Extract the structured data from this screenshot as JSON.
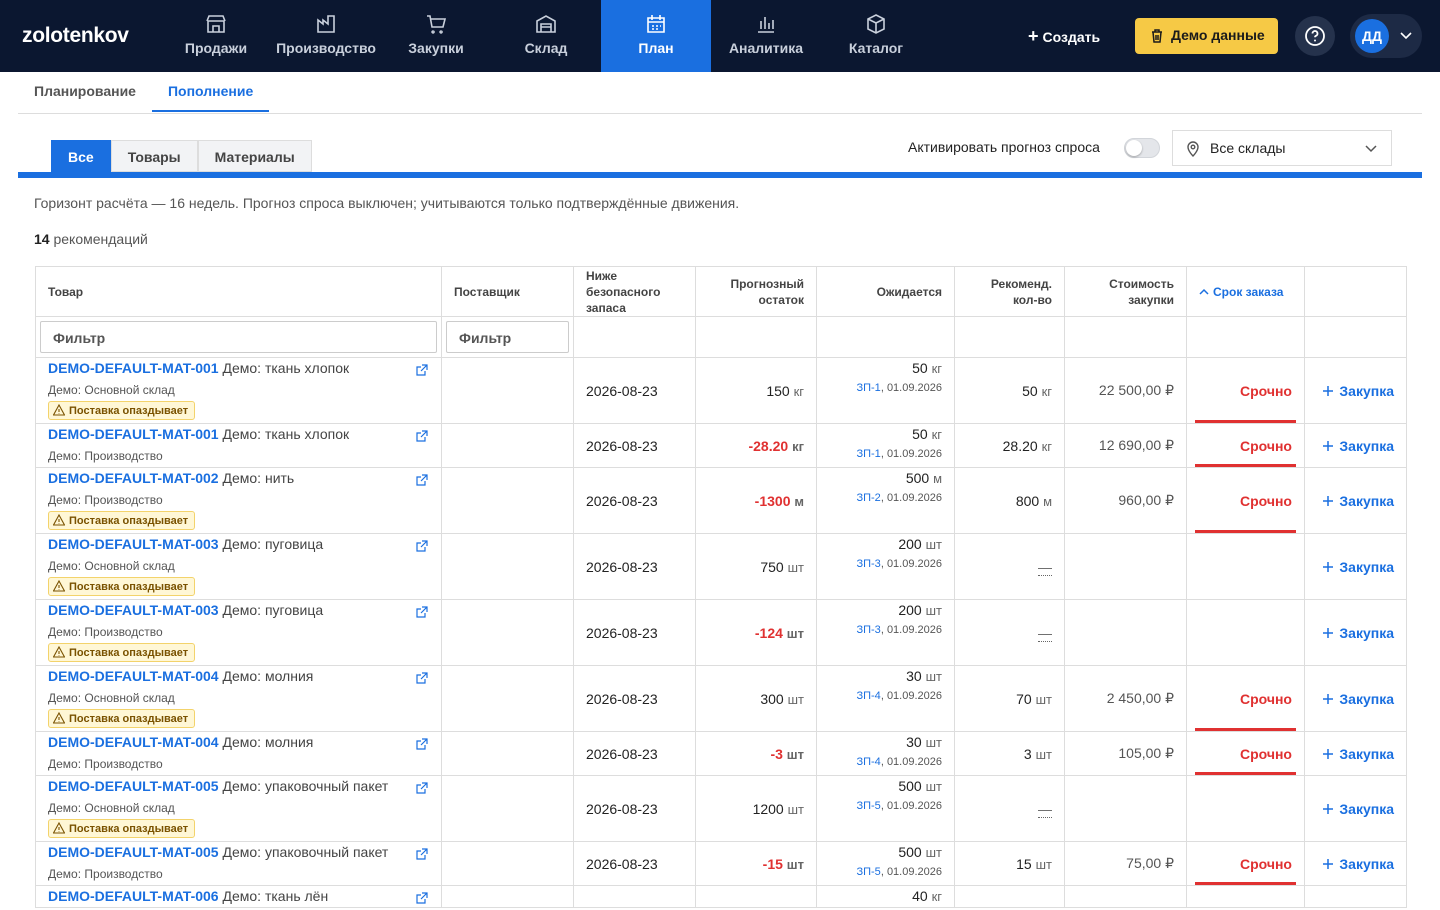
{
  "nav": {
    "logo": "zolotenkov",
    "items": [
      "Продажи",
      "Производство",
      "Закупки",
      "Склад",
      "План",
      "Аналитика",
      "Каталог"
    ],
    "active": 4,
    "create": "Создать",
    "demo": "Демо данные",
    "avatar": "ДД"
  },
  "subtabs": {
    "items": [
      "Планирование",
      "Пополнение"
    ],
    "active": 1
  },
  "filters": {
    "segments": [
      "Все",
      "Товары",
      "Материалы"
    ],
    "active": 0,
    "forecast_toggle": "Активировать прогноз спроса",
    "warehouse": "Все склады"
  },
  "info": "Горизонт расчёта — 16 недель. Прогноз спроса выключен; учитываются только подтверждённые движения.",
  "summary": {
    "count": 14,
    "label": "рекомендаций"
  },
  "table": {
    "headers": [
      "Товар",
      "Поставщик",
      "Ниже безопасного запаса",
      "Прогнозный остаток",
      "Ожидается",
      "Рекоменд. кол-во",
      "Стоимость закупки",
      "Срок заказа"
    ],
    "sort_column": 7,
    "filter_placeholder": "Фильтр",
    "rows": [
      {
        "sku": "DEMO-DEFAULT-MAT-001",
        "name": "Демо: ткань хлопок",
        "location": "Демо: Основной склад",
        "warning": "Поставка опаздывает",
        "date": "2026-08-23",
        "forecast": "150",
        "forecast_unit": "кг",
        "expected": "50",
        "expected_unit": "кг",
        "doc": "ЗП-1",
        "doc_date": "01.09.2026",
        "recommended": "50",
        "recommended_unit": "кг",
        "cost": "22 500,00 ₽",
        "deadline": "Срочно",
        "action": "Закупка"
      },
      {
        "sku": "DEMO-DEFAULT-MAT-001",
        "name": "Демо: ткань хлопок",
        "location": "Демо: Производство",
        "date": "2026-08-23",
        "forecast": "-28.20",
        "forecast_unit": "кг",
        "expected": "50",
        "expected_unit": "кг",
        "doc": "ЗП-1",
        "doc_date": "01.09.2026",
        "recommended": "28.20",
        "recommended_unit": "кг",
        "cost": "12 690,00 ₽",
        "deadline": "Срочно",
        "action": "Закупка"
      },
      {
        "sku": "DEMO-DEFAULT-MAT-002",
        "name": "Демо: нить",
        "location": "Демо: Производство",
        "warning": "Поставка опаздывает",
        "date": "2026-08-23",
        "forecast": "-1300",
        "forecast_unit": "м",
        "expected": "500",
        "expected_unit": "м",
        "doc": "ЗП-2",
        "doc_date": "01.09.2026",
        "recommended": "800",
        "recommended_unit": "м",
        "cost": "960,00 ₽",
        "deadline": "Срочно",
        "action": "Закупка"
      },
      {
        "sku": "DEMO-DEFAULT-MAT-003",
        "name": "Демо: пуговица",
        "location": "Демо: Основной склад",
        "warning": "Поставка опаздывает",
        "date": "2026-08-23",
        "forecast": "750",
        "forecast_unit": "шт",
        "expected": "200",
        "expected_unit": "шт",
        "doc": "ЗП-3",
        "doc_date": "01.09.2026",
        "recommended": "—",
        "action": "Закупка"
      },
      {
        "sku": "DEMO-DEFAULT-MAT-003",
        "name": "Демо: пуговица",
        "location": "Демо: Производство",
        "warning": "Поставка опаздывает",
        "date": "2026-08-23",
        "forecast": "-124",
        "forecast_unit": "шт",
        "expected": "200",
        "expected_unit": "шт",
        "doc": "ЗП-3",
        "doc_date": "01.09.2026",
        "recommended": "—",
        "action": "Закупка"
      },
      {
        "sku": "DEMO-DEFAULT-MAT-004",
        "name": "Демо: молния",
        "location": "Демо: Основной склад",
        "warning": "Поставка опаздывает",
        "date": "2026-08-23",
        "forecast": "300",
        "forecast_unit": "шт",
        "expected": "30",
        "expected_unit": "шт",
        "doc": "ЗП-4",
        "doc_date": "01.09.2026",
        "recommended": "70",
        "recommended_unit": "шт",
        "cost": "2 450,00 ₽",
        "deadline": "Срочно",
        "action": "Закупка"
      },
      {
        "sku": "DEMO-DEFAULT-MAT-004",
        "name": "Демо: молния",
        "location": "Демо: Производство",
        "date": "2026-08-23",
        "forecast": "-3",
        "forecast_unit": "шт",
        "expected": "30",
        "expected_unit": "шт",
        "doc": "ЗП-4",
        "doc_date": "01.09.2026",
        "recommended": "3",
        "recommended_unit": "шт",
        "cost": "105,00 ₽",
        "deadline": "Срочно",
        "action": "Закупка"
      },
      {
        "sku": "DEMO-DEFAULT-MAT-005",
        "name": "Демо: упаковочный пакет",
        "location": "Демо: Основной склад",
        "warning": "Поставка опаздывает",
        "date": "2026-08-23",
        "forecast": "1200",
        "forecast_unit": "шт",
        "expected": "500",
        "expected_unit": "шт",
        "doc": "ЗП-5",
        "doc_date": "01.09.2026",
        "recommended": "—",
        "action": "Закупка"
      },
      {
        "sku": "DEMO-DEFAULT-MAT-005",
        "name": "Демо: упаковочный пакет",
        "location": "Демо: Производство",
        "date": "2026-08-23",
        "forecast": "-15",
        "forecast_unit": "шт",
        "expected": "500",
        "expected_unit": "шт",
        "doc": "ЗП-5",
        "doc_date": "01.09.2026",
        "recommended": "15",
        "recommended_unit": "шт",
        "cost": "75,00 ₽",
        "deadline": "Срочно",
        "action": "Закупка"
      },
      {
        "sku": "DEMO-DEFAULT-MAT-006",
        "name": "Демо: ткань лён",
        "expected": "40",
        "expected_unit": "кг"
      }
    ]
  }
}
